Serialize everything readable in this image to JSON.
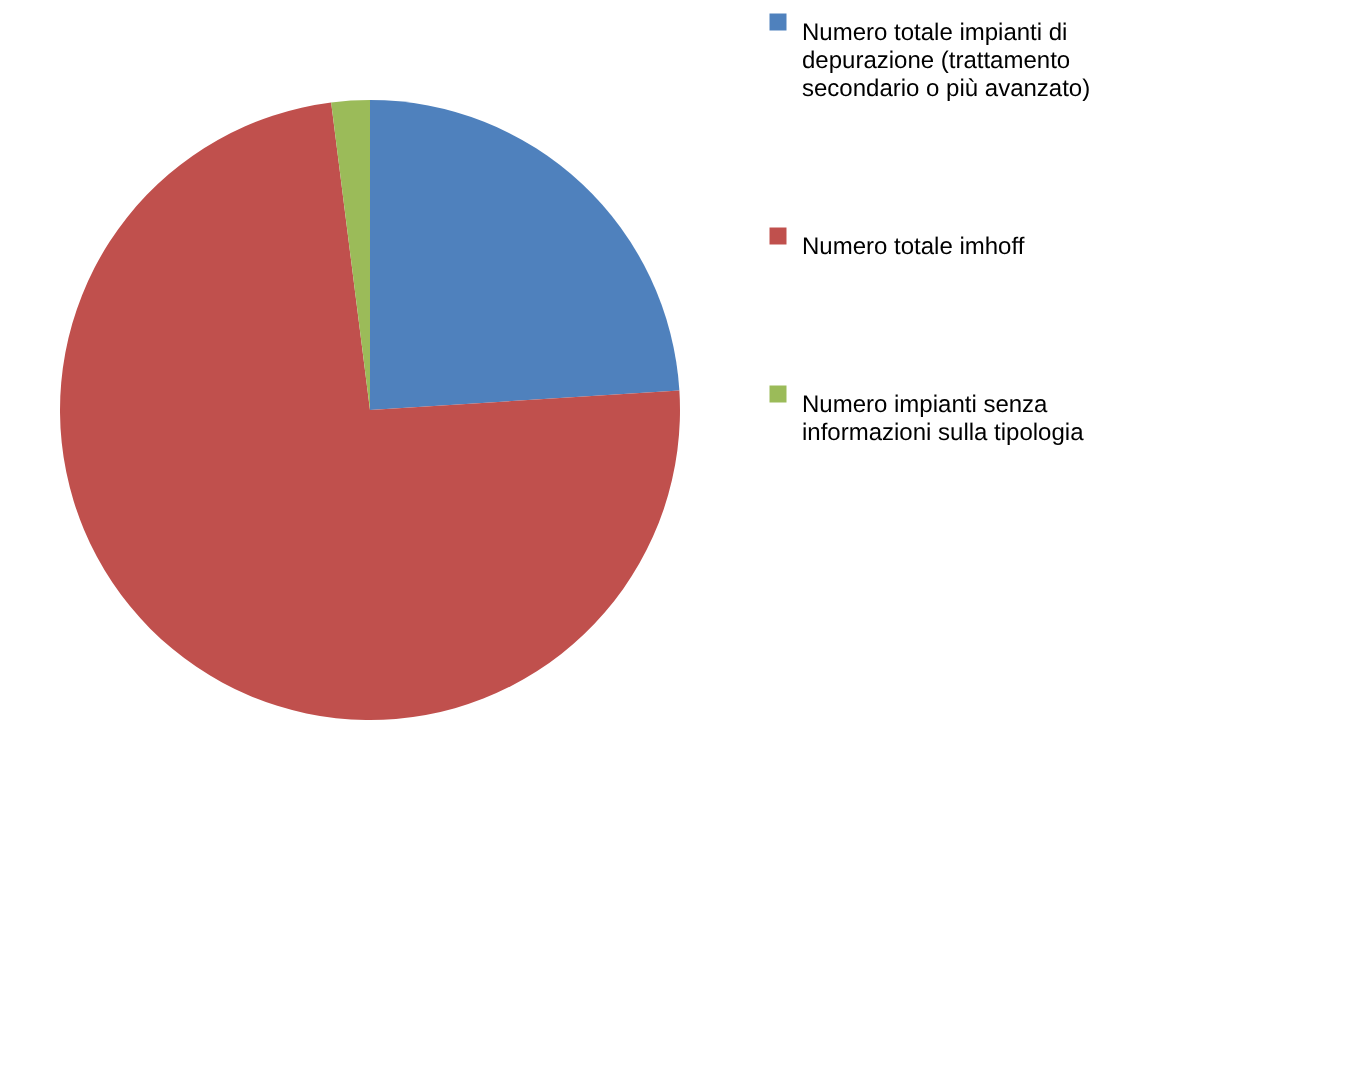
{
  "chart_data": {
    "type": "pie",
    "categories": [
      "Numero totale impianti di depurazione (trattamento secondario o più avanzato)",
      "Numero totale imhoff",
      "Numero impianti senza informazioni sulla tipologia"
    ],
    "values": [
      24,
      74,
      2
    ],
    "colors": [
      "#4f81bd",
      "#c0504d",
      "#9bbb59"
    ],
    "legend": "right"
  }
}
